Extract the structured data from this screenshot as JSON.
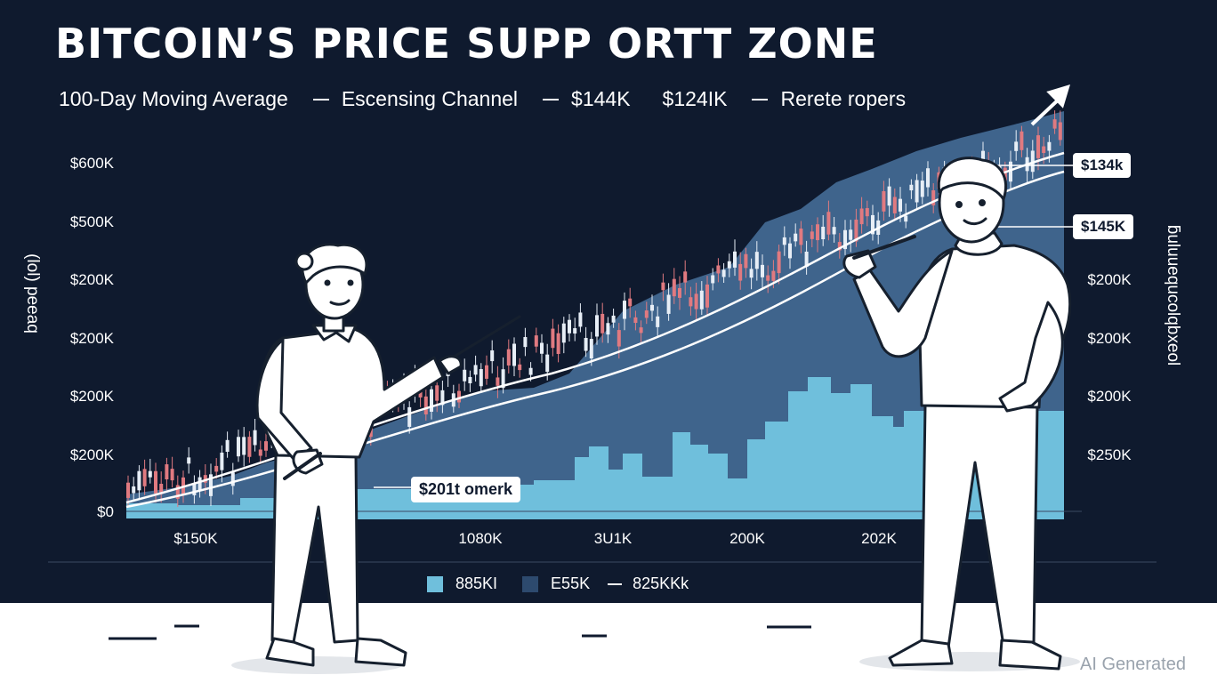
{
  "title": "BITCOIN’S PRICE SUPP ORTT ZONE",
  "top_legend": [
    "100-Day Moving Average",
    "Escensing Channel",
    "$144K",
    "$124IK",
    "Rerete ropers"
  ],
  "y_axis_left": [
    "$600K",
    "$500K",
    "$200K",
    "$200K",
    "$200K",
    "$200K",
    "$0"
  ],
  "y_axis_right": [
    "$200K",
    "$200K",
    "$200K",
    "$250K"
  ],
  "x_axis": [
    "$150K",
    "1080K",
    "3U1K",
    "200K",
    "202K"
  ],
  "callouts": {
    "mid": "$201t omerk",
    "right_top": "$134k",
    "right_mid": "$145K"
  },
  "left_vertical_label": "(lol) peeaq",
  "right_vertical_label": "ƃuluuequcolqbxeol",
  "bottom_legend": [
    "885KI",
    "E55K",
    "825KKk"
  ],
  "watermark": "AI Generated",
  "colors": {
    "background": "#0f1a2e",
    "area": "#3f648c",
    "volume": "#6fbfdc",
    "candle_up": "#e7eef6",
    "candle_down": "#e07a80",
    "line": "#ffffff",
    "floor": "#ffffff"
  },
  "chart_data": {
    "type": "candlestick",
    "title": "BITCOIN’S PRICE SUPP ORTT ZONE",
    "y_ticks_left": [
      "$600K",
      "$500K",
      "$200K",
      "$200K",
      "$200K",
      "$200K",
      "$0"
    ],
    "y_ticks_right": [
      "$200K",
      "$200K",
      "$200K",
      "$250K"
    ],
    "x_ticks": [
      "$150K",
      "1080K",
      "3U1K",
      "200K",
      "202K"
    ],
    "legend": [
      "100-Day Moving Average",
      "Escensing Channel",
      "$144K",
      "$124IK",
      "Rerete ropers"
    ],
    "trend": "upward",
    "grid": false
  },
  "illustration": {
    "figures": [
      "person-pointing-left",
      "person-pointing-right"
    ],
    "icons": [
      "trend-arrow-icon"
    ]
  }
}
